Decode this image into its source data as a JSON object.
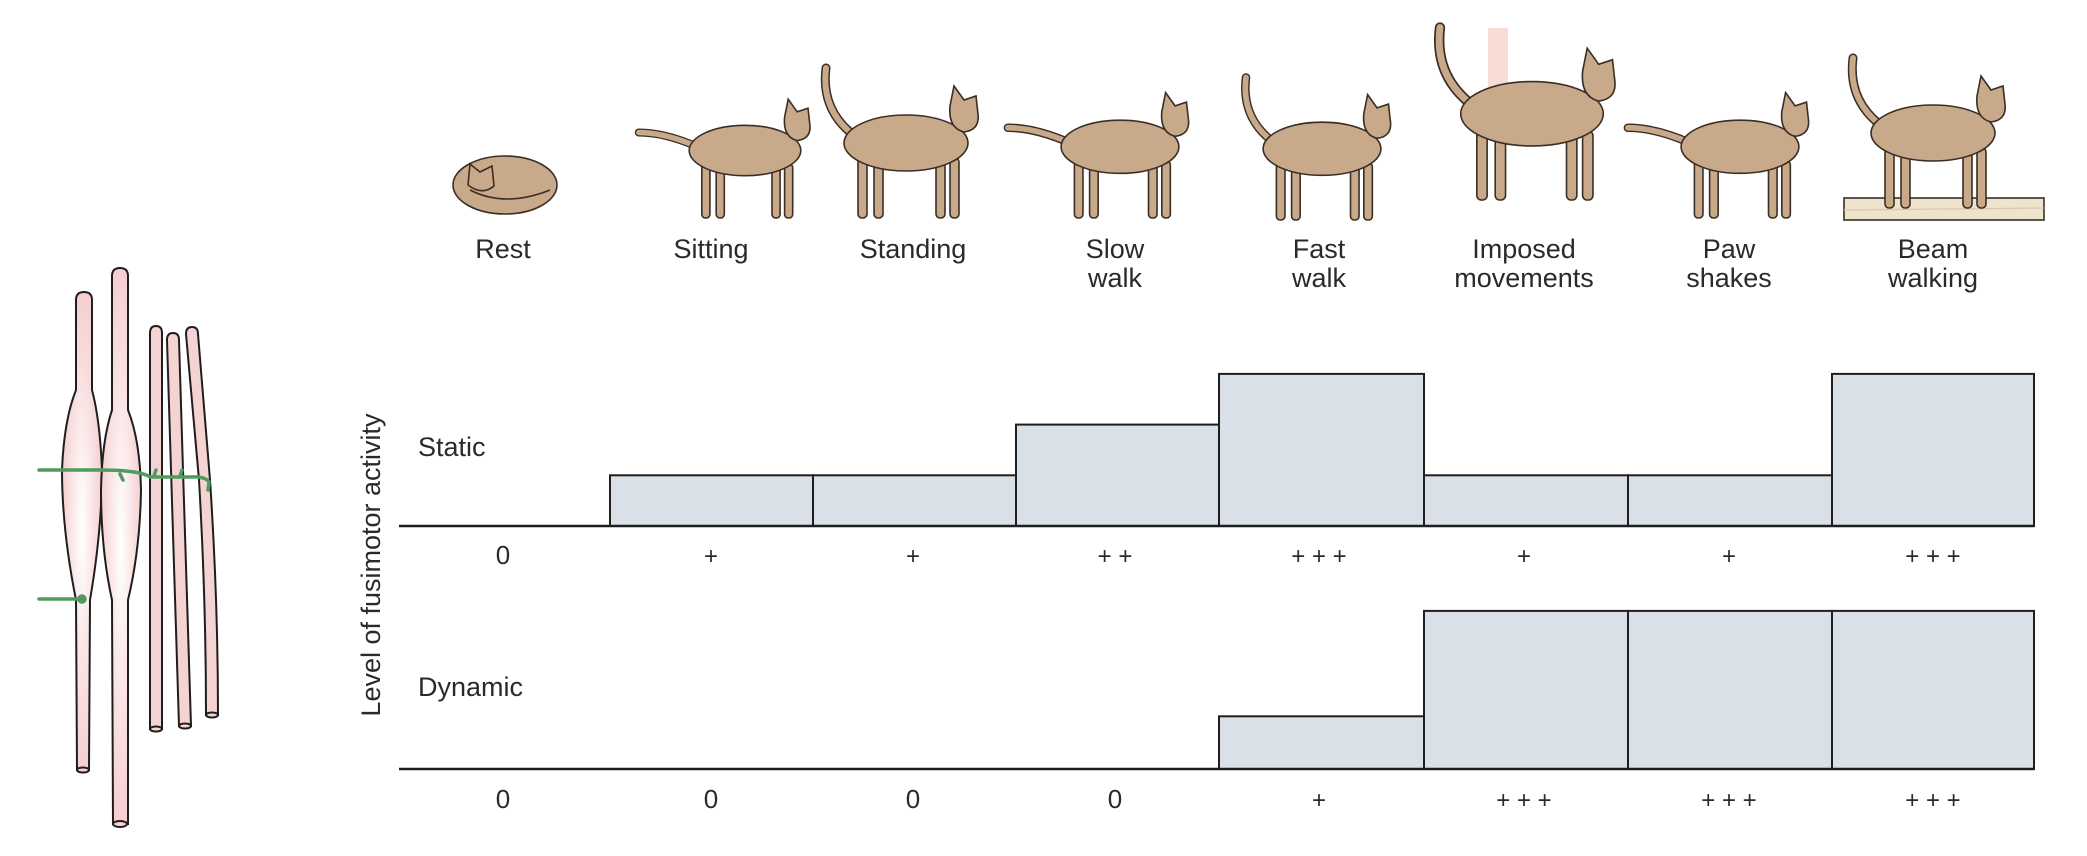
{
  "chart_data": {
    "type": "bar",
    "ylabel": "Level of fusimotor activity",
    "categories": [
      {
        "line1": "Rest",
        "line2": ""
      },
      {
        "line1": "Sitting",
        "line2": ""
      },
      {
        "line1": "Standing",
        "line2": ""
      },
      {
        "line1": "Slow",
        "line2": "walk"
      },
      {
        "line1": "Fast",
        "line2": "walk"
      },
      {
        "line1": "Imposed",
        "line2": "movements"
      },
      {
        "line1": "Paw",
        "line2": "shakes"
      },
      {
        "line1": "Beam",
        "line2": "walking"
      }
    ],
    "series": [
      {
        "name": "Static",
        "values": [
          0,
          1,
          1,
          2,
          3,
          1,
          1,
          3
        ],
        "labels": [
          "0",
          "+",
          "+",
          "+ +",
          "+ + +",
          "+",
          "+",
          "+ + +"
        ]
      },
      {
        "name": "Dynamic",
        "values": [
          0,
          0,
          0,
          0,
          1,
          3,
          3,
          3
        ],
        "labels": [
          "0",
          "0",
          "0",
          "0",
          "+",
          "+ + +",
          "+ + +",
          "+ + +"
        ]
      }
    ],
    "ylim": [
      0,
      3
    ],
    "colors": {
      "bar_fill": "#d9e0e7",
      "stroke": "#1e1e1e",
      "cat": "#c8a98a",
      "fiber": "#f6d3d3",
      "nerve": "#4f9a5e"
    }
  }
}
